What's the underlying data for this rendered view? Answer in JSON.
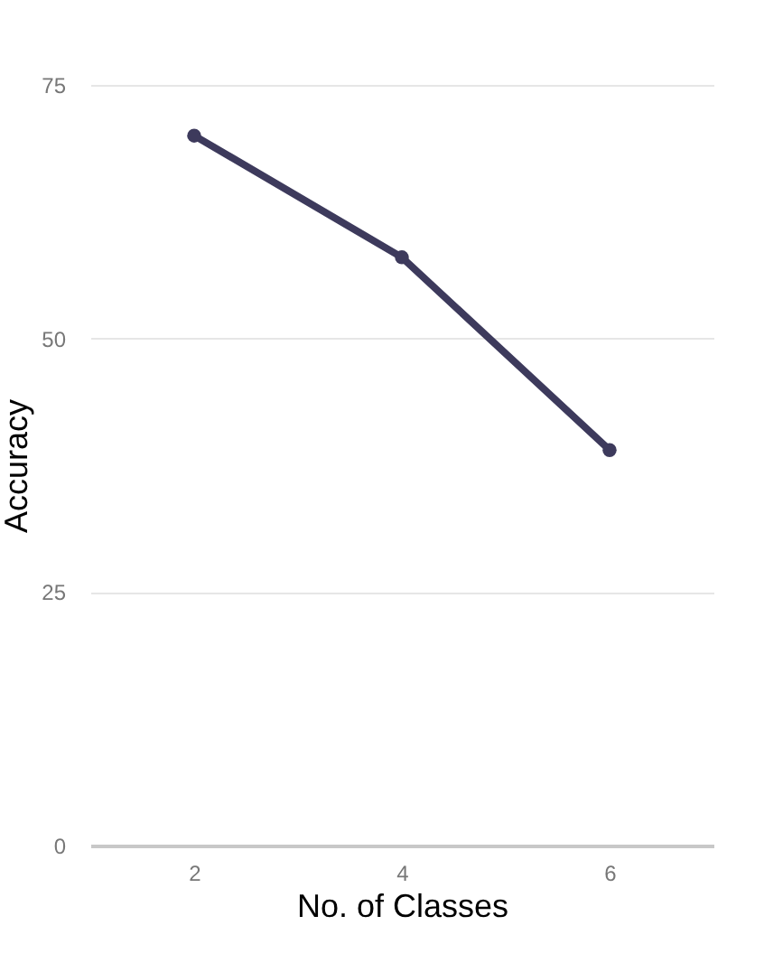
{
  "chart_data": {
    "type": "line",
    "xlabel": "No. of Classes",
    "ylabel": "Accuracy",
    "x": [
      2,
      4,
      6
    ],
    "series": [
      {
        "color": "#3d3a5c",
        "values": [
          70,
          58,
          39
        ]
      }
    ],
    "xlim": [
      1,
      7
    ],
    "xticks": [
      2,
      4,
      6
    ],
    "ylim": [
      0,
      75
    ],
    "yticks": [
      0,
      25,
      50,
      75
    ],
    "grid": "y",
    "marker": "circle",
    "line_style": "solid"
  }
}
